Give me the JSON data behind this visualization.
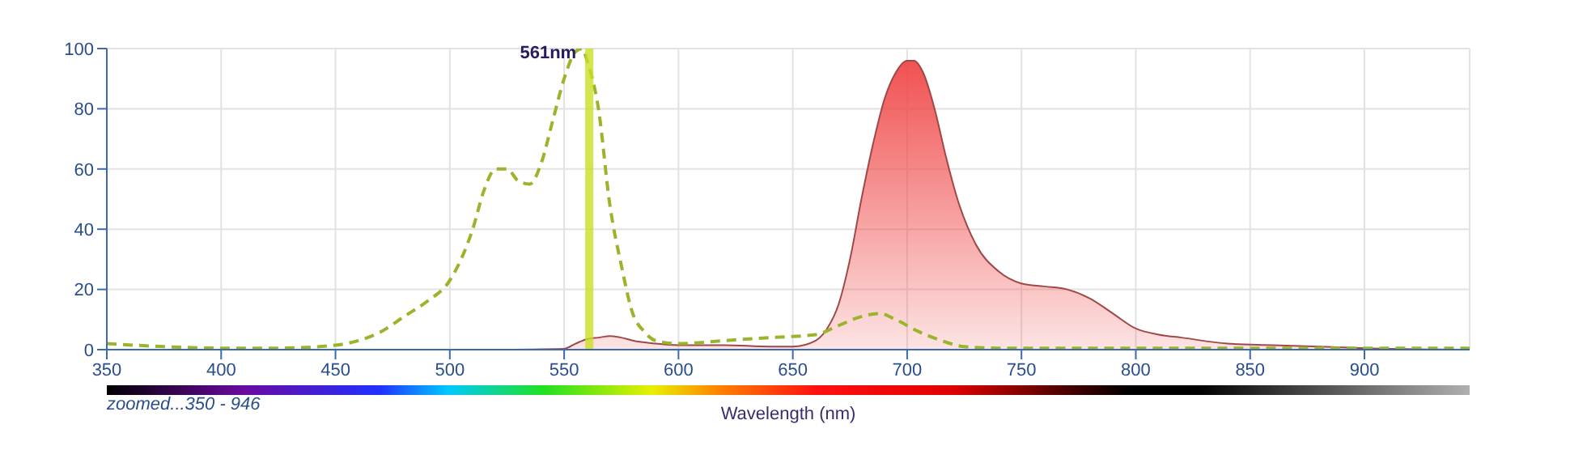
{
  "chart_data": {
    "type": "line",
    "xlabel": "Wavelength (nm)",
    "xlim": [
      350,
      946
    ],
    "xticks": [
      350,
      400,
      450,
      500,
      550,
      600,
      650,
      700,
      750,
      800,
      850,
      900
    ],
    "ylim": [
      0,
      100
    ],
    "yticks": [
      0,
      20,
      40,
      60,
      80,
      100
    ],
    "grid": true,
    "legend": false,
    "marker": "none",
    "series": [
      {
        "line_style": "dashed",
        "color": "#9ab52c",
        "x": [
          350,
          375,
          400,
          425,
          450,
          460,
          470,
          480,
          490,
          500,
          510,
          515,
          520,
          525,
          530,
          535,
          540,
          545,
          550,
          555,
          558,
          560,
          565,
          570,
          575,
          580,
          585,
          590,
          600,
          620,
          640,
          660,
          670,
          680,
          688,
          695,
          705,
          715,
          725,
          740,
          800,
          900,
          946
        ],
        "values": [
          2,
          1,
          0.5,
          0.5,
          1.5,
          3,
          6,
          11,
          16,
          23,
          40,
          53,
          60,
          60,
          56,
          55,
          62,
          76,
          90,
          99,
          100,
          96,
          80,
          48,
          28,
          12,
          6,
          3,
          2,
          3,
          4,
          5,
          8,
          11,
          12,
          10,
          6,
          3,
          1,
          0.5,
          0.5,
          0.5,
          0.5
        ]
      },
      {
        "type": "area",
        "color": "#f04848",
        "x": [
          517,
          550,
          555,
          560,
          565,
          570,
          575,
          580,
          590,
          600,
          620,
          640,
          650,
          660,
          665,
          670,
          675,
          680,
          685,
          690,
          695,
          700,
          703,
          707,
          712,
          717,
          722,
          730,
          740,
          750,
          760,
          770,
          780,
          790,
          800,
          810,
          820,
          840,
          860,
          880,
          900,
          946
        ],
        "values": [
          0,
          0.3,
          2,
          3.5,
          4,
          4.5,
          4,
          3,
          2,
          1.5,
          1.5,
          1,
          1,
          3,
          7,
          15,
          30,
          50,
          68,
          83,
          92,
          96,
          96,
          92,
          80,
          64,
          50,
          35,
          26,
          22,
          21,
          20,
          17,
          12,
          7,
          5,
          4,
          2,
          1.5,
          1,
          0.5,
          0
        ]
      }
    ],
    "ref_lines": [
      {
        "axis": "x",
        "value": 561,
        "label": "561nm",
        "color": "#c8e020"
      }
    ],
    "annotations": [
      "zoomed...350 - 946"
    ]
  }
}
